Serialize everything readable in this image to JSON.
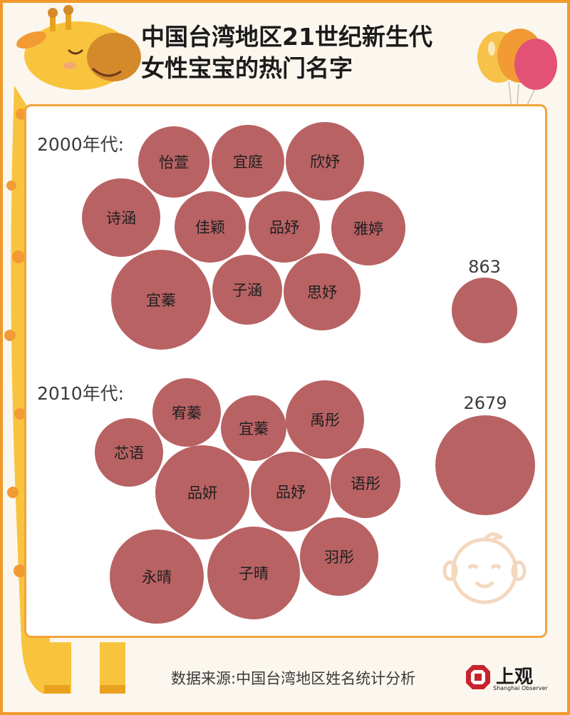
{
  "title": {
    "line1": "中国台湾地区21世纪新生代",
    "line2": "女性宝宝的热门名字"
  },
  "colors": {
    "bubble": "#b86264",
    "border": "#f19a2a",
    "giraffe": "#f8c43e",
    "balloon_yellow": "#f6c24a",
    "balloon_orange": "#f29a33",
    "balloon_pink": "#e35275"
  },
  "chart_data": [
    {
      "type": "bubble",
      "label": "2000年代:",
      "names": [
        "怡萱",
        "宜庭",
        "欣妤",
        "诗涵",
        "佳颖",
        "品妤",
        "雅婷",
        "宜蓁",
        "子涵",
        "思妤"
      ],
      "legend_value": "863"
    },
    {
      "type": "bubble",
      "label": "2010年代:",
      "names": [
        "宥蓁",
        "宜蓁",
        "禹彤",
        "芯语",
        "品妍",
        "品妤",
        "语彤",
        "永晴",
        "子晴",
        "羽彤"
      ],
      "legend_value": "2679"
    }
  ],
  "source": "数据来源:中国台湾地区姓名统计分析",
  "logo": {
    "name": "上观",
    "sub": "Shanghai Observer"
  },
  "icons": [
    "giraffe-icon",
    "balloon-icon",
    "baby-face-icon",
    "logo-mark-icon"
  ]
}
